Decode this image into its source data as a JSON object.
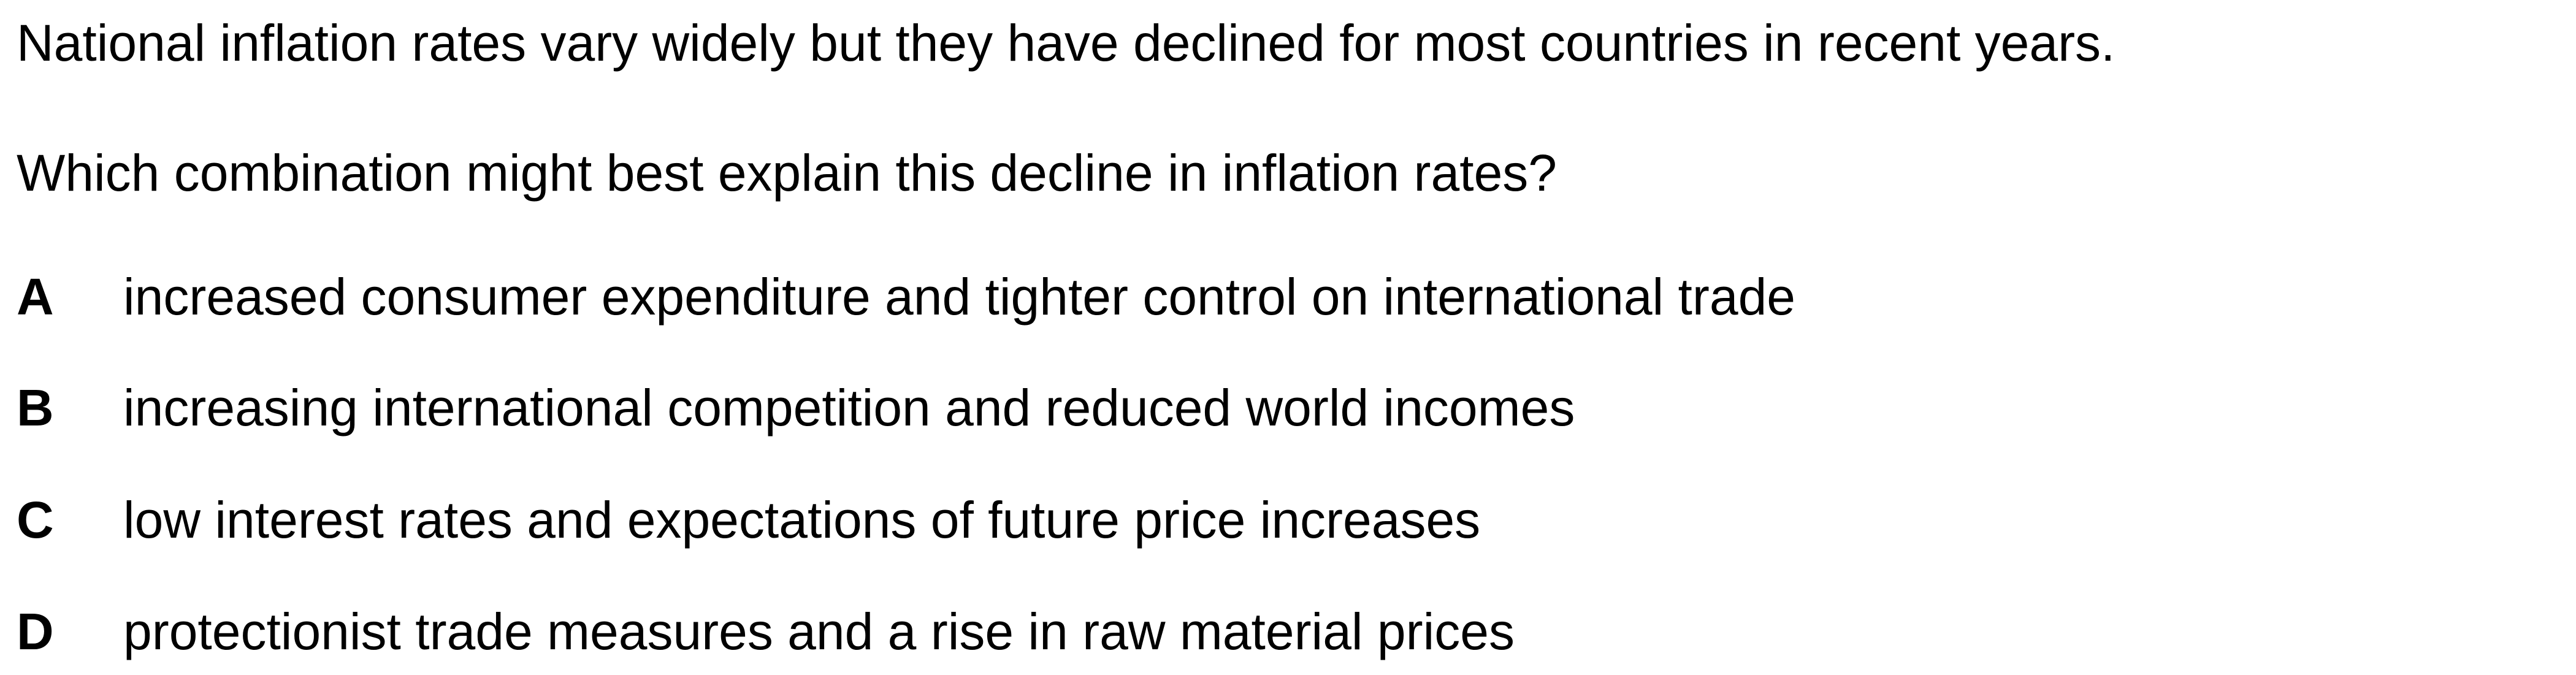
{
  "question": {
    "stem_lines": [
      "National inflation rates vary widely but they have declined for most countries in recent years.",
      "Which combination might best explain this decline in inflation rates?"
    ],
    "options": [
      {
        "letter": "A",
        "text": "increased consumer expenditure and tighter control on international trade"
      },
      {
        "letter": "B",
        "text": "increasing international competition and reduced world incomes"
      },
      {
        "letter": "C",
        "text": "low interest rates and expectations of future price increases"
      },
      {
        "letter": "D",
        "text": "protectionist trade measures and a rise in raw material prices"
      }
    ]
  }
}
